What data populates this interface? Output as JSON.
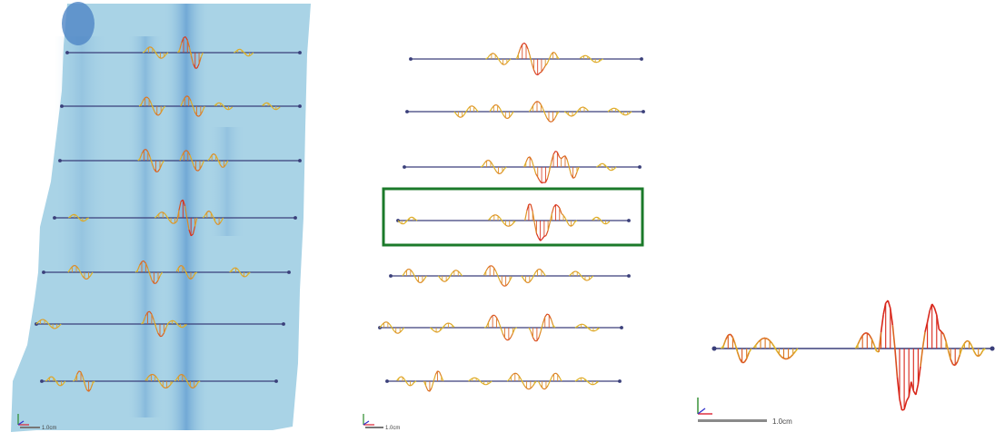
{
  "colors": {
    "map_background": "#a9d3e6",
    "map_dark_band": "#6aa6d3",
    "baseline": "#3a3f7a",
    "glyph_low": "#e0c62a",
    "glyph_high": "#d8271b",
    "highlight_box": "#1b7a2a"
  },
  "panels": {
    "map": {
      "scale_label": "1.0cm",
      "axis_icon": "xyz-axes-icon"
    },
    "stack": {
      "scale_label": "1.0cm",
      "axis_icon": "xyz-axes-icon",
      "highlighted_profile_index": 3
    },
    "detail": {
      "scale_label": "1.0cm",
      "axis_icon": "xyz-axes-icon"
    }
  }
}
